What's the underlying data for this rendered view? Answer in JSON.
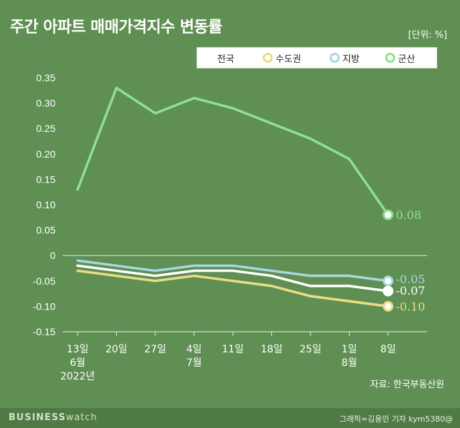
{
  "title": "주간 아파트 매매가격지수 변동률",
  "unit": "[단위: %]",
  "source": "자료: 한국부동산원",
  "brand_bold": "BUSINESS",
  "brand_light": "watch",
  "credit": "그래픽=김용민 기자 kym5380@",
  "colors": {
    "background": "#5f8f52",
    "전국": "#ffffff",
    "수도권": "#ebdc85",
    "지방": "#a8d7e0",
    "군산": "#8fe08f"
  },
  "chart_data": {
    "type": "line",
    "ylim": [
      -0.15,
      0.35
    ],
    "yticks": [
      "0.35",
      "0.30",
      "0.25",
      "0.20",
      "0.15",
      "0.10",
      "0.05",
      "0",
      "-0.05",
      "-0.10",
      "-0.15"
    ],
    "categories": [
      [
        "13일",
        "6월",
        "2022년"
      ],
      [
        "20일"
      ],
      [
        "27일"
      ],
      [
        "4일",
        "7월"
      ],
      [
        "11일"
      ],
      [
        "18일"
      ],
      [
        "25일"
      ],
      [
        "1일",
        "8월"
      ],
      [
        "8일"
      ]
    ],
    "series": [
      {
        "name": "전국",
        "values": [
          -0.02,
          -0.03,
          -0.04,
          -0.03,
          -0.03,
          -0.04,
          -0.06,
          -0.06,
          -0.07
        ],
        "end_label": "-0.07"
      },
      {
        "name": "수도권",
        "values": [
          -0.03,
          -0.04,
          -0.05,
          -0.04,
          -0.05,
          -0.06,
          -0.08,
          -0.09,
          -0.1
        ],
        "end_label": "-0.10"
      },
      {
        "name": "지방",
        "values": [
          -0.01,
          -0.02,
          -0.03,
          -0.02,
          -0.02,
          -0.03,
          -0.04,
          -0.04,
          -0.05
        ],
        "end_label": "-0.05"
      },
      {
        "name": "군산",
        "values": [
          0.13,
          0.33,
          0.28,
          0.31,
          0.29,
          0.26,
          0.23,
          0.19,
          0.08
        ],
        "end_label": "0.08"
      }
    ],
    "grid": false,
    "legend": "top-right"
  }
}
